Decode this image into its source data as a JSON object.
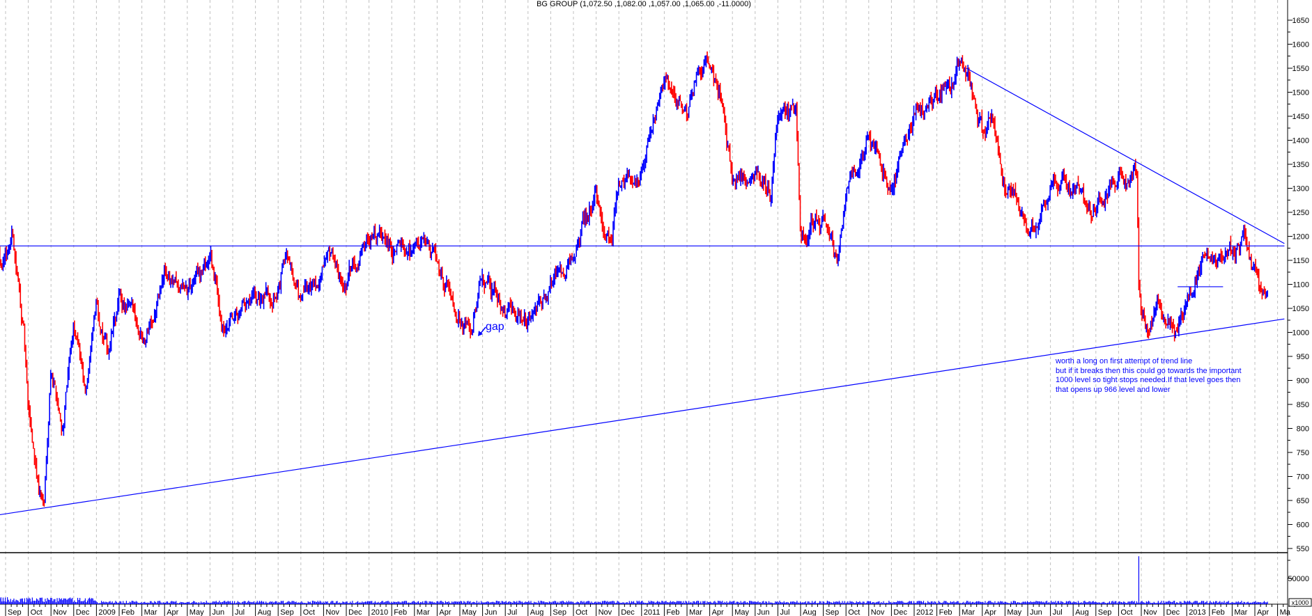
{
  "chart_data": {
    "type": "ohlc",
    "title": "BG GROUP (1,072.50 ,1,082.00 ,1,057.00 ,1,065.00 ,-11.0000)",
    "x_unit": "months since Sep 2008",
    "ylim": [
      540,
      1670
    ],
    "y_ticks": [
      550,
      600,
      650,
      700,
      750,
      800,
      850,
      900,
      950,
      1000,
      1050,
      1100,
      1150,
      1200,
      1250,
      1300,
      1350,
      1400,
      1450,
      1500,
      1550,
      1600,
      1650
    ],
    "volume_tick": "50000",
    "volume_unit": "x1000",
    "x_labels": [
      "Sep",
      "Oct",
      "Nov",
      "Dec",
      "2009",
      "Feb",
      "Mar",
      "Apr",
      "May",
      "Jun",
      "Jul",
      "Aug",
      "Sep",
      "Oct",
      "Nov",
      "Dec",
      "2010",
      "Feb",
      "Mar",
      "Apr",
      "May",
      "Jun",
      "Jul",
      "Aug",
      "Sep",
      "Oct",
      "Nov",
      "Dec",
      "2011",
      "Feb",
      "Mar",
      "Apr",
      "May",
      "Jun",
      "Jul",
      "Aug",
      "Sep",
      "Oct",
      "Nov",
      "Dec",
      "2012",
      "Feb",
      "Mar",
      "Apr",
      "May",
      "Jun",
      "Jul",
      "Aug",
      "Sep",
      "Oct",
      "Nov",
      "Dec",
      "2013",
      "Feb",
      "Mar",
      "Apr",
      "Ma"
    ],
    "price_path": [
      [
        -0.3,
        1180
      ],
      [
        0,
        1150
      ],
      [
        0.3,
        1210
      ],
      [
        0.8,
        1000
      ],
      [
        1.0,
        820
      ],
      [
        1.5,
        670
      ],
      [
        1.7,
        645
      ],
      [
        2.0,
        950
      ],
      [
        2.5,
        810
      ],
      [
        3.0,
        1000
      ],
      [
        3.5,
        880
      ],
      [
        4.0,
        1050
      ],
      [
        4.5,
        950
      ],
      [
        5.0,
        1060
      ],
      [
        6.0,
        1000
      ],
      [
        7.0,
        1120
      ],
      [
        8.0,
        1080
      ],
      [
        9.0,
        1160
      ],
      [
        9.6,
        1000
      ],
      [
        10.0,
        1000
      ],
      [
        11.0,
        1040
      ],
      [
        12.0,
        1100
      ],
      [
        12.5,
        1170
      ],
      [
        13.0,
        1060
      ],
      [
        14.0,
        1130
      ],
      [
        15.0,
        1100
      ],
      [
        16.0,
        1230
      ],
      [
        17.0,
        1160
      ],
      [
        18.0,
        1190
      ],
      [
        19.0,
        1150
      ],
      [
        20.0,
        1060
      ],
      [
        20.5,
        995
      ],
      [
        21.0,
        1100
      ],
      [
        22.0,
        1050
      ],
      [
        23.0,
        1020
      ],
      [
        24.0,
        1100
      ],
      [
        25.0,
        1170
      ],
      [
        26.0,
        1280
      ],
      [
        26.7,
        1180
      ],
      [
        27.0,
        1320
      ],
      [
        28.0,
        1340
      ],
      [
        29.0,
        1500
      ],
      [
        30.0,
        1450
      ],
      [
        30.5,
        1550
      ],
      [
        31.0,
        1560
      ],
      [
        31.5,
        1480
      ],
      [
        32.0,
        1320
      ],
      [
        33.0,
        1350
      ],
      [
        33.7,
        1290
      ],
      [
        34.0,
        1450
      ],
      [
        34.8,
        1460
      ],
      [
        35.0,
        1180
      ],
      [
        36.0,
        1250
      ],
      [
        36.6,
        1150
      ],
      [
        37.0,
        1300
      ],
      [
        38.0,
        1400
      ],
      [
        39.0,
        1300
      ],
      [
        40.0,
        1450
      ],
      [
        41.0,
        1480
      ],
      [
        42.0,
        1540
      ],
      [
        42.5,
        1520
      ],
      [
        43.0,
        1420
      ],
      [
        43.5,
        1450
      ],
      [
        44.0,
        1300
      ],
      [
        45.0,
        1230
      ],
      [
        46.0,
        1300
      ],
      [
        47.0,
        1300
      ],
      [
        48.0,
        1250
      ],
      [
        49.0,
        1320
      ],
      [
        49.8,
        1340
      ],
      [
        49.9,
        1100
      ],
      [
        50.0,
        1060
      ],
      [
        50.3,
        1000
      ],
      [
        50.7,
        1080
      ],
      [
        51.0,
        1060
      ],
      [
        51.5,
        1010
      ],
      [
        52.0,
        1080
      ],
      [
        52.5,
        1150
      ],
      [
        53.0,
        1140
      ],
      [
        54.0,
        1170
      ],
      [
        54.5,
        1190
      ],
      [
        55.0,
        1120
      ],
      [
        55.3,
        1040
      ],
      [
        55.6,
        1070
      ]
    ],
    "volume_spike": {
      "month": 49.9,
      "value": 93000
    },
    "trend_lines": [
      {
        "name": "resistance-horizontal",
        "from": [
          -0.3,
          1180
        ],
        "to": [
          56.3,
          1180
        ]
      },
      {
        "name": "rising-support",
        "from": [
          -0.3,
          620
        ],
        "to": [
          56.3,
          1028
        ]
      },
      {
        "name": "falling-resistance",
        "from": [
          42.3,
          1550
        ],
        "to": [
          56.3,
          1185
        ]
      },
      {
        "name": "consolidation-top",
        "from": [
          51.6,
          1095
        ],
        "to": [
          53.6,
          1095
        ]
      }
    ],
    "colors": {
      "up": "#0000ff",
      "down": "#ff0000",
      "line": "#0000ff",
      "grid": "#c0c0c0"
    }
  },
  "annotations": {
    "gap": "gap",
    "note": [
      "worth a long on first attempt of trend line",
      "but if it breaks then this could go towards the important",
      "1000 level so tight stops needed.If that level goes then",
      "that opens up 966 level and lower"
    ]
  }
}
